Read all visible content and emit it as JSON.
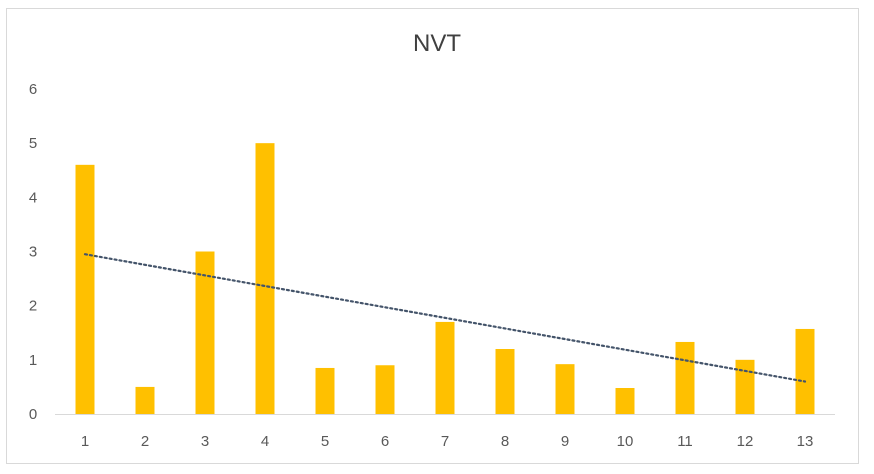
{
  "chart_data": {
    "type": "bar",
    "title": "NVT",
    "xlabel": "",
    "ylabel": "",
    "categories": [
      "1",
      "2",
      "3",
      "4",
      "5",
      "6",
      "7",
      "8",
      "9",
      "10",
      "11",
      "12",
      "13"
    ],
    "values": [
      4.6,
      0.5,
      3.0,
      5.0,
      0.85,
      0.9,
      1.7,
      1.2,
      0.92,
      0.48,
      1.33,
      1.0,
      1.57
    ],
    "ylim": [
      0,
      6
    ],
    "yticks": [
      "0",
      "1",
      "2",
      "3",
      "4",
      "5",
      "6"
    ],
    "grid": false,
    "legend": "none",
    "trendline": {
      "type": "linear",
      "style": "dotted",
      "start_value": 2.95,
      "end_value": 0.6
    },
    "colors": {
      "bar": "#FFC000",
      "trendline": "#44546A",
      "axis": "#d9d9d9",
      "text": "#595959"
    }
  }
}
